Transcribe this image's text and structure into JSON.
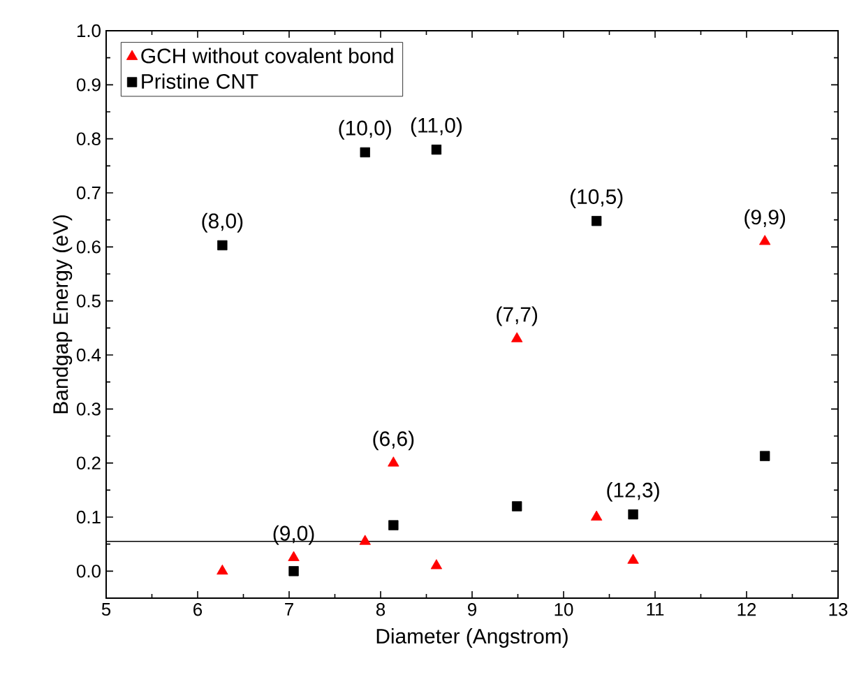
{
  "chart_data": {
    "type": "scatter",
    "xlabel": "Diameter (Angstrom)",
    "ylabel": "Bandgap Energy (eV)",
    "xlim": [
      5,
      13
    ],
    "xticks": [
      5,
      6,
      7,
      8,
      9,
      10,
      11,
      12,
      13
    ],
    "ylim": [
      -0.05,
      1.0
    ],
    "yticks": [
      {
        "value": 0,
        "label": "0.0"
      },
      0.1,
      0.2,
      0.3,
      0.4,
      0.5,
      0.6,
      0.7,
      0.8,
      0.9,
      {
        "value": 1,
        "label": "1.0"
      }
    ],
    "legend": "top left",
    "grid": false,
    "series": [
      {
        "name": "GCH without covalent bond",
        "color": "#ff0000",
        "marker": "triangle",
        "x": [
          6.27,
          7.05,
          7.83,
          8.14,
          8.61,
          9.49,
          10.36,
          10.76,
          12.2
        ],
        "values": [
          0.0,
          0.025,
          0.055,
          0.2,
          0.01,
          0.43,
          0.1,
          0.02,
          0.61
        ]
      },
      {
        "name": "Pristine CNT",
        "color": "#000000",
        "marker": "square",
        "x": [
          6.27,
          7.05,
          7.83,
          8.14,
          8.61,
          9.49,
          10.36,
          10.76,
          12.2
        ],
        "values": [
          0.603,
          0.0,
          0.775,
          0.085,
          0.78,
          0.12,
          0.648,
          0.105,
          0.213
        ]
      }
    ],
    "ref_lines": [
      {
        "axis": "y",
        "value": 0.055,
        "color": "#000000"
      }
    ],
    "annotations": [
      {
        "text": "(8,0)",
        "x": 6.27,
        "y": 0.603
      },
      {
        "text": "(10,0)",
        "x": 7.83,
        "y": 0.775
      },
      {
        "text": "(11,0)",
        "x": 8.61,
        "y": 0.78
      },
      {
        "text": "(10,5)",
        "x": 10.36,
        "y": 0.648
      },
      {
        "text": "(9,9)",
        "x": 12.2,
        "y": 0.61
      },
      {
        "text": "(7,7)",
        "x": 9.49,
        "y": 0.43
      },
      {
        "text": "(6,6)",
        "x": 8.14,
        "y": 0.2
      },
      {
        "text": "(9,0)",
        "x": 7.05,
        "y": 0.025
      },
      {
        "text": "(12,3)",
        "x": 10.76,
        "y": 0.105
      }
    ]
  }
}
